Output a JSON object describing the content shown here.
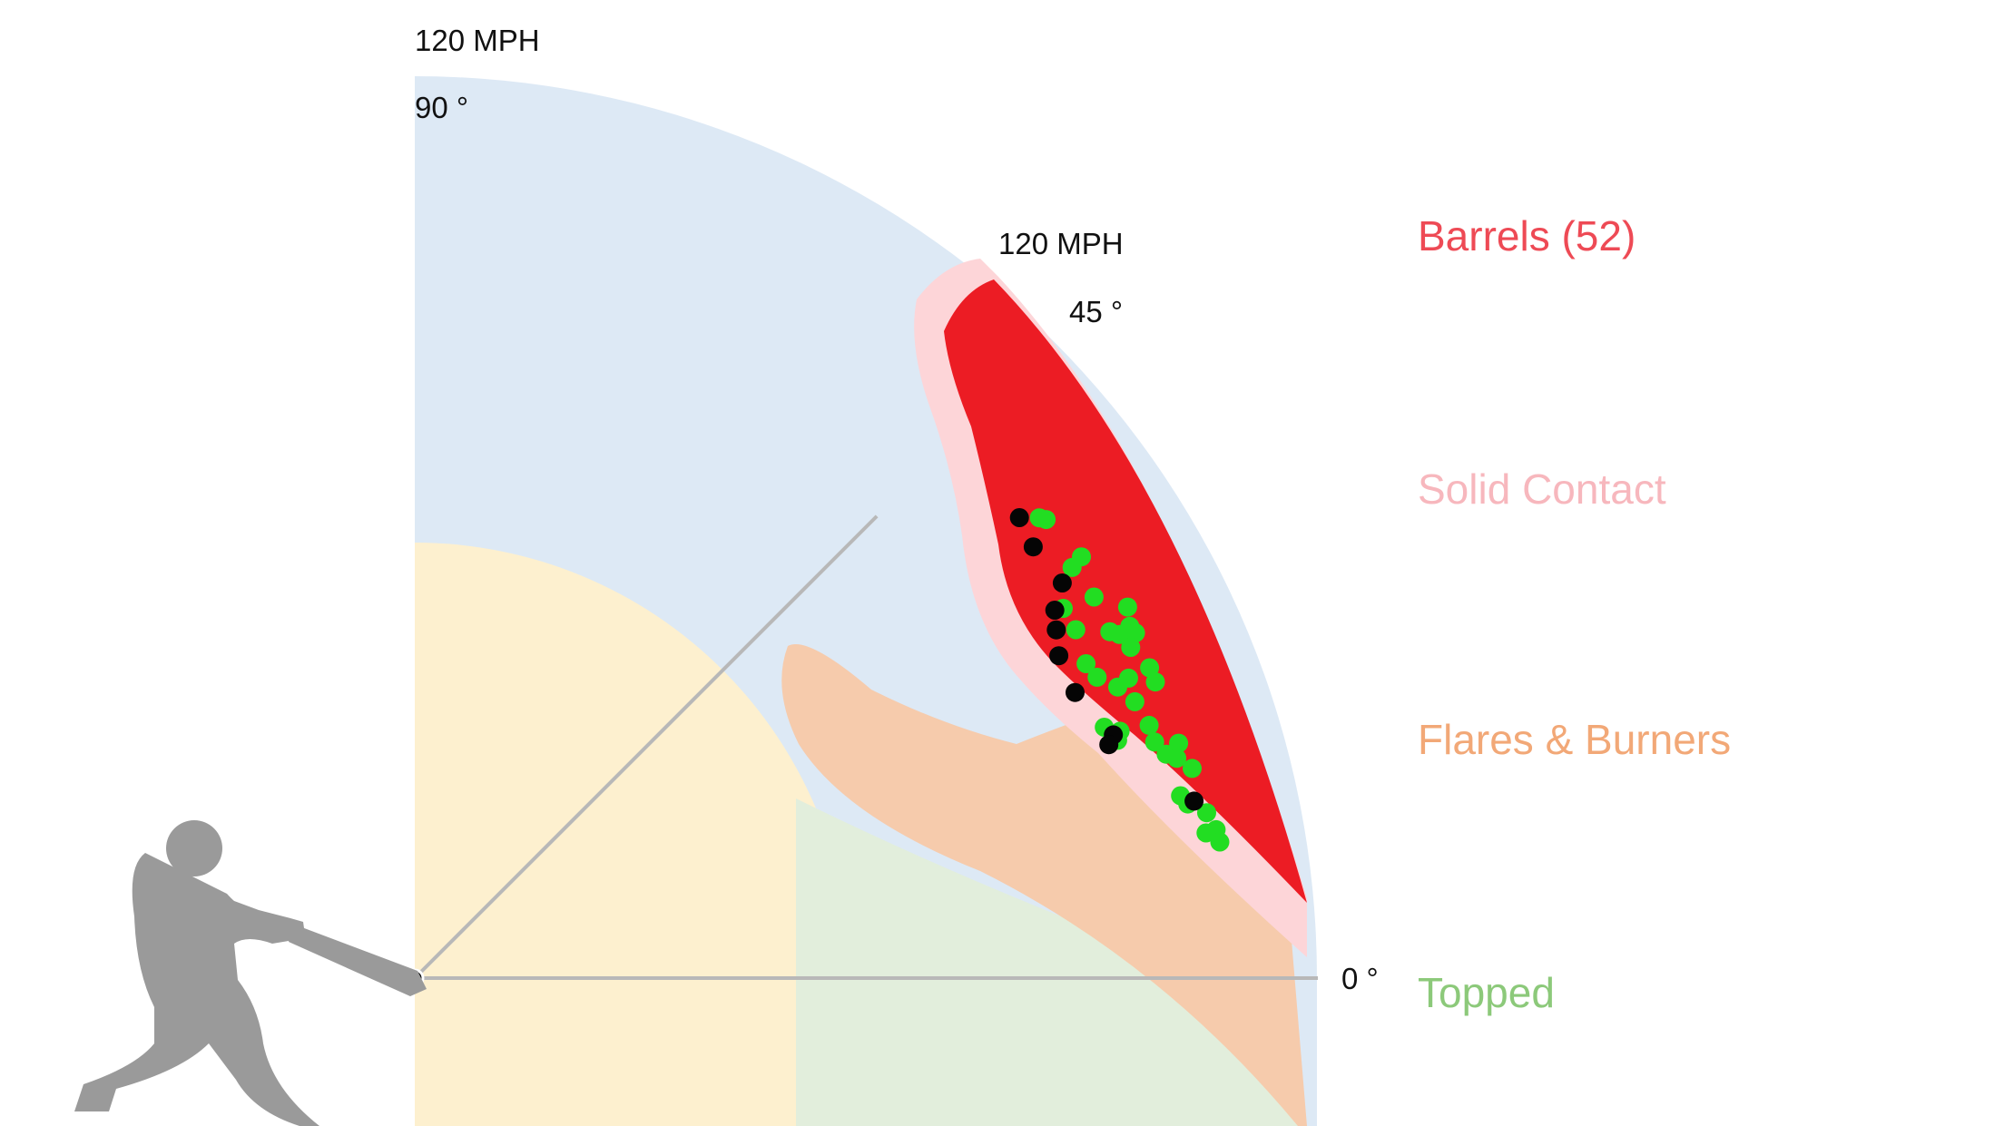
{
  "chart_data": {
    "type": "scatter",
    "chart_kind": "launch angle vs exit velocity polar zone chart",
    "axes": {
      "launch_angle_deg": [
        0,
        90
      ],
      "exit_velocity_mph": [
        0,
        120
      ]
    },
    "annotations": {
      "top_speed": "120 MPH",
      "top_angle": "90 °",
      "mid_speed": "120 MPH",
      "mid_angle": "45 °",
      "zero_angle": "0 °"
    },
    "legend": {
      "placement": "right",
      "items": [
        {
          "label": "Barrels (52)",
          "color": "#ee4a55"
        },
        {
          "label": "Solid Contact",
          "color": "#f7b7bd"
        },
        {
          "label": "Flares & Burners",
          "color": "#f2a877"
        },
        {
          "label": "Topped",
          "color": "#8cc97a"
        }
      ]
    },
    "zone_colors": {
      "barrel": "#ec1c24",
      "solid_contact": "#fdd5d8",
      "flares_burners": "#f6cbac",
      "topped": "#e2eedc",
      "under": "#fdf0cf",
      "poorly_under": "#dde9f5",
      "axis_line": "#b8b8b8",
      "batter": "#9a9a9a"
    },
    "point_colors": {
      "green": "#22dd22",
      "black": "#050505"
    },
    "points": [
      {
        "la": 37.3,
        "ev": 101.1,
        "c": "black"
      },
      {
        "la": 34.9,
        "ev": 100.3,
        "c": "black"
      },
      {
        "la": 31.4,
        "ev": 100.9,
        "c": "black"
      },
      {
        "la": 29.9,
        "ev": 98.2,
        "c": "black"
      },
      {
        "la": 28.5,
        "ev": 97.1,
        "c": "black"
      },
      {
        "la": 26.6,
        "ev": 95.8,
        "c": "black"
      },
      {
        "la": 23.4,
        "ev": 95.7,
        "c": "black"
      },
      {
        "la": 19.2,
        "ev": 98.4,
        "c": "black"
      },
      {
        "la": 18.6,
        "ev": 97.4,
        "c": "black"
      },
      {
        "la": 12.8,
        "ev": 106.3,
        "c": "black"
      },
      {
        "la": 36.4,
        "ev": 103.2,
        "c": "green"
      },
      {
        "la": 36.0,
        "ev": 103.8,
        "c": "green"
      },
      {
        "la": 32.3,
        "ev": 104.9,
        "c": "green"
      },
      {
        "la": 32.0,
        "ev": 103.1,
        "c": "green"
      },
      {
        "la": 29.7,
        "ev": 99.3,
        "c": "green"
      },
      {
        "la": 29.3,
        "ev": 103.6,
        "c": "green"
      },
      {
        "la": 27.8,
        "ev": 99.4,
        "c": "green"
      },
      {
        "la": 27.5,
        "ev": 106.9,
        "c": "green"
      },
      {
        "la": 26.5,
        "ev": 103.3,
        "c": "green"
      },
      {
        "la": 26.2,
        "ev": 106.0,
        "c": "green"
      },
      {
        "la": 26.0,
        "ev": 104.3,
        "c": "green"
      },
      {
        "la": 25.6,
        "ev": 106.3,
        "c": "green"
      },
      {
        "la": 25.1,
        "ev": 98.6,
        "c": "green"
      },
      {
        "la": 24.8,
        "ev": 104.9,
        "c": "green"
      },
      {
        "la": 23.8,
        "ev": 99.2,
        "c": "green"
      },
      {
        "la": 22.9,
        "ev": 106.1,
        "c": "green"
      },
      {
        "la": 22.8,
        "ev": 103.0,
        "c": "green"
      },
      {
        "la": 22.5,
        "ev": 101.2,
        "c": "green"
      },
      {
        "la": 21.8,
        "ev": 106.1,
        "c": "green"
      },
      {
        "la": 21.0,
        "ev": 102.6,
        "c": "green"
      },
      {
        "la": 20.0,
        "ev": 97.6,
        "c": "green"
      },
      {
        "la": 19.3,
        "ev": 99.4,
        "c": "green"
      },
      {
        "la": 19.0,
        "ev": 103.3,
        "c": "green"
      },
      {
        "la": 18.7,
        "ev": 98.7,
        "c": "green"
      },
      {
        "la": 17.7,
        "ev": 103.3,
        "c": "green"
      },
      {
        "la": 17.1,
        "ev": 106.3,
        "c": "green"
      },
      {
        "la": 16.6,
        "ev": 104.3,
        "c": "green"
      },
      {
        "la": 16.1,
        "ev": 105.5,
        "c": "green"
      },
      {
        "la": 15.1,
        "ev": 107.1,
        "c": "green"
      },
      {
        "la": 13.4,
        "ev": 104.7,
        "c": "green"
      },
      {
        "la": 12.7,
        "ev": 105.4,
        "c": "green"
      },
      {
        "la": 11.8,
        "ev": 107.6,
        "c": "green"
      },
      {
        "la": 10.5,
        "ev": 108.4,
        "c": "green"
      },
      {
        "la": 10.4,
        "ev": 107.0,
        "c": "green"
      },
      {
        "la": 9.6,
        "ev": 108.6,
        "c": "green"
      }
    ]
  }
}
